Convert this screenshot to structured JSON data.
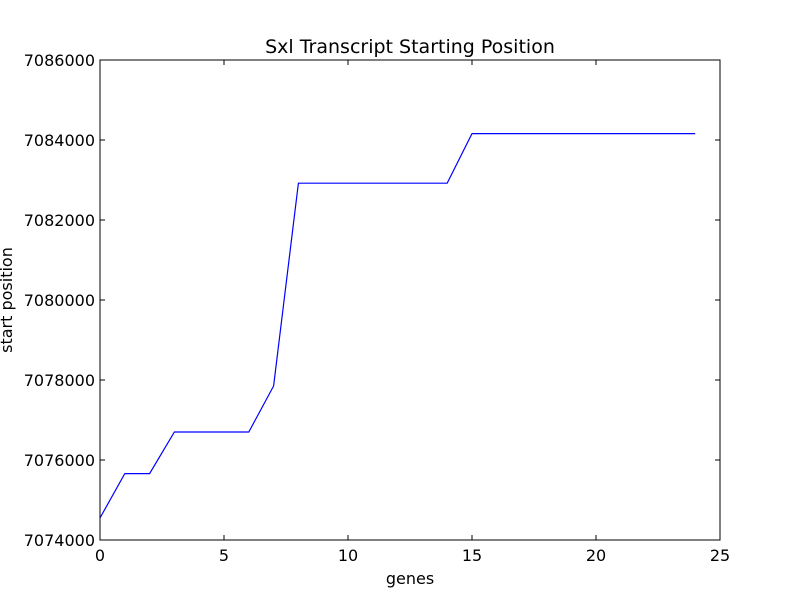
{
  "chart_data": {
    "type": "line",
    "title": "Sxl Transcript Starting Position",
    "xlabel": "genes",
    "ylabel": "start position",
    "xlim": [
      0,
      25
    ],
    "ylim": [
      7074000,
      7086000
    ],
    "xticks": [
      0,
      5,
      10,
      15,
      20,
      25
    ],
    "yticks": [
      7074000,
      7076000,
      7078000,
      7080000,
      7082000,
      7084000,
      7086000
    ],
    "xtick_labels": [
      "0",
      "5",
      "10",
      "15",
      "20",
      "25"
    ],
    "ytick_labels": [
      "7074000",
      "7076000",
      "7078000",
      "7080000",
      "7082000",
      "7084000",
      "7086000"
    ],
    "grid": false,
    "series": [
      {
        "color": "#0000ff",
        "x": [
          0,
          1,
          2,
          3,
          4,
          5,
          6,
          7,
          8,
          9,
          10,
          11,
          12,
          13,
          14,
          15,
          16,
          17,
          18,
          19,
          20,
          21,
          22,
          23,
          24
        ],
        "y": [
          7074550,
          7075660,
          7075660,
          7076700,
          7076700,
          7076700,
          7076700,
          7077850,
          7082920,
          7082920,
          7082920,
          7082920,
          7082920,
          7082920,
          7082920,
          7084160,
          7084160,
          7084160,
          7084160,
          7084160,
          7084160,
          7084160,
          7084160,
          7084160,
          7084160
        ]
      }
    ]
  }
}
